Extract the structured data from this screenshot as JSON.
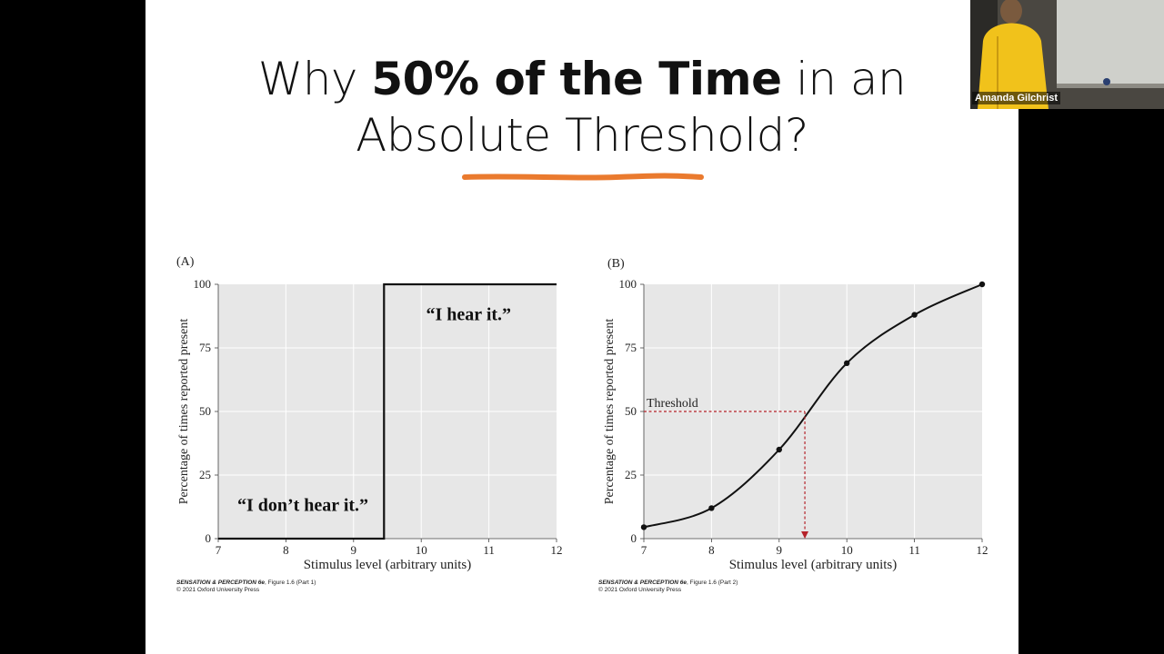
{
  "slide": {
    "title_plain_1": "Why ",
    "title_bold": "50% of the Time",
    "title_plain_2": " in an",
    "title_line2": "Absolute Threshold?",
    "underline_color": "#ea7a2e"
  },
  "chart_data": [
    {
      "type": "line",
      "panel": "(A)",
      "xlabel": "Stimulus level (arbitrary units)",
      "ylabel": "Percentage of times reported present",
      "xlim": [
        7,
        12
      ],
      "ylim": [
        0,
        100
      ],
      "x_ticks": [
        "7",
        "8",
        "9",
        "10",
        "11",
        "12"
      ],
      "y_ticks": [
        "0",
        "25",
        "50",
        "75",
        "100"
      ],
      "grid": true,
      "series": [
        {
          "x": [
            7,
            9.45,
            9.45,
            12
          ],
          "y": [
            0,
            0,
            100,
            100
          ]
        }
      ],
      "annotations": [
        {
          "text": "“I don’t hear it.”",
          "x": 8.25,
          "y": 13
        },
        {
          "text": "“I hear it.”",
          "x": 10.7,
          "y": 88
        }
      ],
      "credit_title": "SENSATION & PERCEPTION 6e",
      "credit_rest": ", Figure 1.6 (Part 1)",
      "credit_copy": "© 2021 Oxford University Press"
    },
    {
      "type": "line",
      "panel": "(B)",
      "xlabel": "Stimulus level (arbitrary units)",
      "ylabel": "Percentage of times reported present",
      "xlim": [
        7,
        12
      ],
      "ylim": [
        0,
        100
      ],
      "x_ticks": [
        "7",
        "8",
        "9",
        "10",
        "11",
        "12"
      ],
      "y_ticks": [
        "0",
        "25",
        "50",
        "75",
        "100"
      ],
      "grid": true,
      "series": [
        {
          "x": [
            7,
            8,
            9,
            10,
            11,
            12
          ],
          "y": [
            4.5,
            12,
            35,
            69,
            88,
            100
          ]
        }
      ],
      "threshold": {
        "label": "Threshold",
        "x": 9.38,
        "y": 50,
        "color": "#b5232b"
      },
      "credit_title": "SENSATION & PERCEPTION 6e",
      "credit_rest": ", Figure 1.6 (Part 2)",
      "credit_copy": "© 2021 Oxford University Press"
    }
  ],
  "video": {
    "participant_name": "Amanda Gilchrist"
  }
}
